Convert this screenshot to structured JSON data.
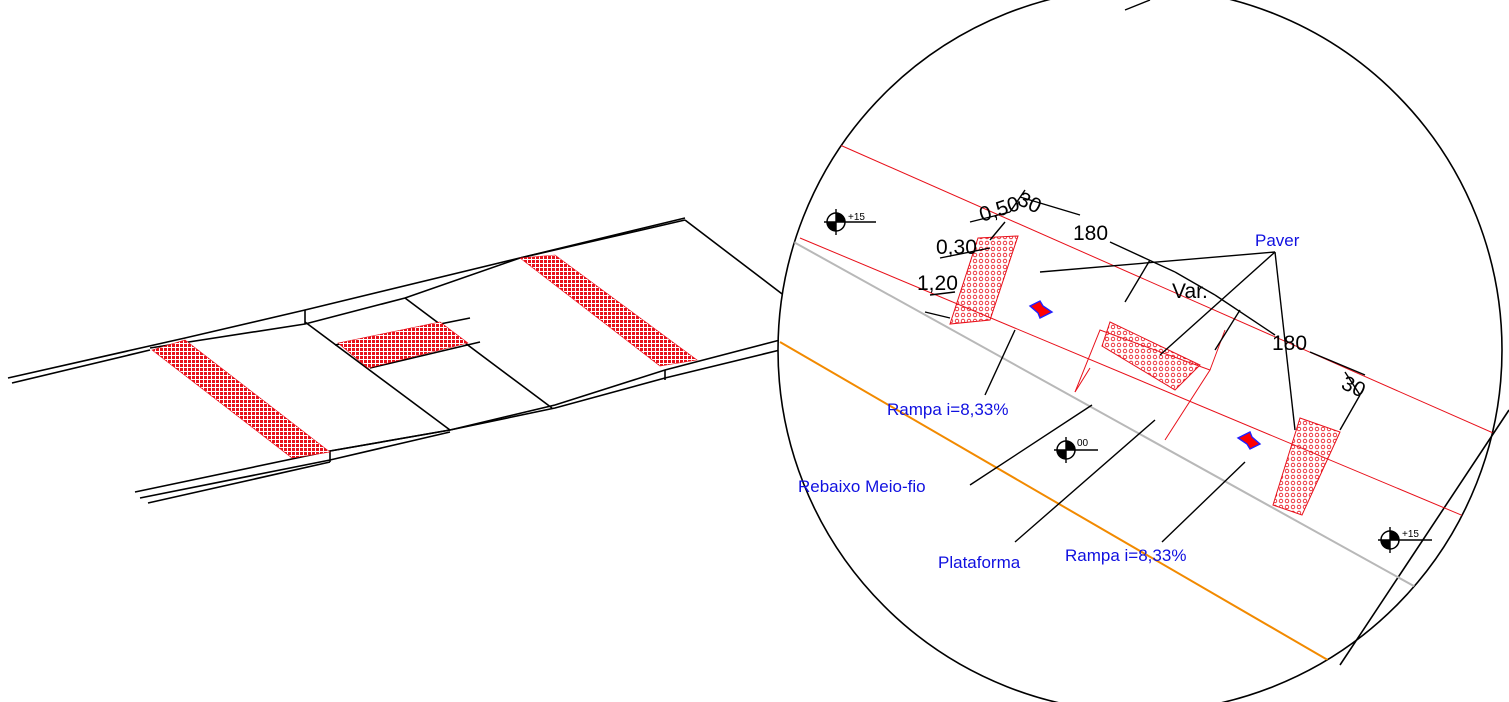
{
  "colors": {
    "line": "#000000",
    "tactile": "#e8101a",
    "label": "#1010e0",
    "curb": "#f28a00",
    "gutter": "#b8b8b8",
    "arrow_fill": "#ff0000",
    "arrow_outline": "#2020ff"
  },
  "dimensions": {
    "d1": "1,20",
    "d2": "0,30",
    "d3": "0,50",
    "d4": "30",
    "d5": "180",
    "d6": "Var.",
    "d7": "180",
    "d8": "30"
  },
  "labels": {
    "paver": "Paver",
    "rampa_left": "Rampa i=8,33%",
    "rebaixo": "Rebaixo Meio-fio",
    "plataforma": "Plataforma",
    "rampa_right": "Rampa i=8,33%"
  },
  "levels": {
    "top_left": "+15",
    "center": "00",
    "bottom_right": "+15"
  },
  "icons": {
    "level_marker": "level-marker-icon",
    "slope_arrow": "slope-arrow-icon"
  }
}
